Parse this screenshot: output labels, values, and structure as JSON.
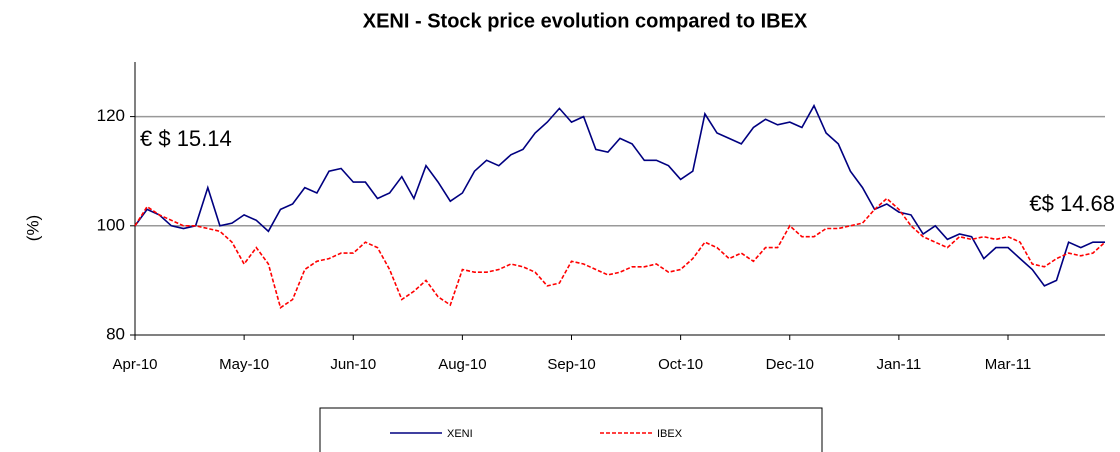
{
  "chart_data": {
    "type": "line",
    "title": "XENI - Stock price evolution compared to IBEX",
    "y_label": "(%)",
    "annotations": [
      "€ $ 15.14",
      "€$ 14.68"
    ],
    "categories": [
      "Apr-10",
      null,
      null,
      null,
      null,
      null,
      null,
      null,
      null,
      "May-10",
      null,
      null,
      null,
      null,
      null,
      null,
      null,
      null,
      "Jun-10",
      null,
      null,
      null,
      null,
      null,
      null,
      null,
      null,
      "Aug-10",
      null,
      null,
      null,
      null,
      null,
      null,
      null,
      null,
      "Sep-10",
      null,
      null,
      null,
      null,
      null,
      null,
      null,
      null,
      "Oct-10",
      null,
      null,
      null,
      null,
      null,
      null,
      null,
      null,
      "Dec-10",
      null,
      null,
      null,
      null,
      null,
      null,
      null,
      null,
      "Jan-11",
      null,
      null,
      null,
      null,
      null,
      null,
      null,
      null,
      "Mar-11",
      null,
      null,
      null,
      null,
      null,
      null,
      null,
      null
    ],
    "series": [
      {
        "name": "XENI",
        "color": "#000080",
        "dashed": false,
        "values": [
          100,
          103,
          102,
          100,
          99.5,
          100,
          107,
          100,
          100.5,
          102,
          101,
          99,
          103,
          104,
          107,
          106,
          110,
          110.5,
          108,
          108,
          105,
          106,
          109,
          105,
          111,
          108,
          104.5,
          106,
          110,
          112,
          111,
          113,
          114,
          117,
          119,
          121.5,
          119,
          120,
          114,
          113.5,
          116,
          115,
          112,
          112,
          111,
          108.5,
          110,
          120.5,
          117,
          116,
          115,
          118,
          119.5,
          118.5,
          119,
          118,
          122,
          117,
          115,
          110,
          107,
          103,
          104,
          102.5,
          102,
          98.5,
          100,
          97.5,
          98.5,
          98,
          94,
          96,
          96,
          94,
          92,
          89,
          90,
          97,
          96,
          97,
          97
        ]
      },
      {
        "name": "IBEX",
        "color": "#ff0000",
        "dashed": true,
        "values": [
          100,
          103.5,
          102,
          101,
          100,
          100,
          99.5,
          99,
          97,
          93,
          96,
          93,
          85,
          86.5,
          92,
          93.5,
          94,
          95,
          95,
          97,
          96,
          92,
          86.5,
          88,
          90,
          87,
          85.5,
          92,
          91.5,
          91.5,
          92,
          93,
          92.5,
          91.5,
          89,
          89.5,
          93.5,
          93,
          92,
          91,
          91.5,
          92.5,
          92.5,
          93,
          91.5,
          92,
          94,
          97,
          96,
          94,
          95,
          93.5,
          96,
          96,
          100,
          98,
          98,
          99.5,
          99.5,
          100,
          100.5,
          103,
          105,
          103,
          100,
          98,
          97,
          96,
          98,
          97.5,
          98,
          97.5,
          98,
          97,
          93,
          92.5,
          94,
          95,
          94.5,
          95,
          97
        ]
      }
    ],
    "ylim": [
      80,
      130
    ],
    "yticks": [
      80,
      100,
      120
    ],
    "grid": true,
    "grid_color": "#999999"
  }
}
